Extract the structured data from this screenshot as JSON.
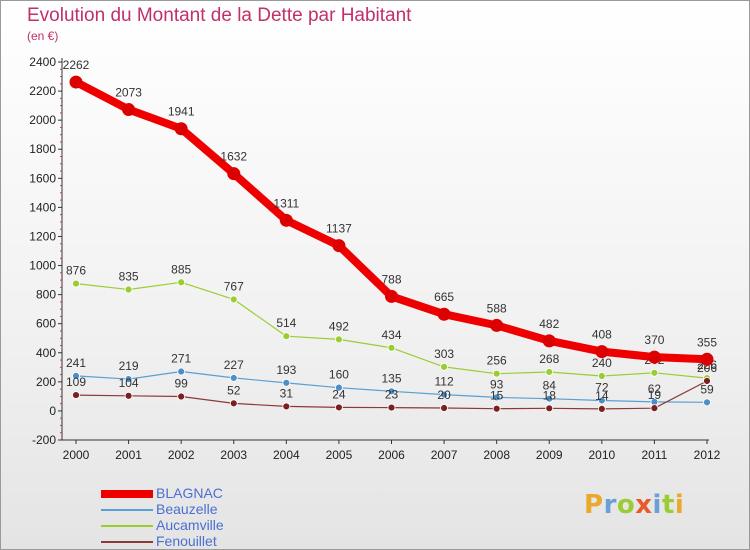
{
  "title": "Evolution du Montant de la Dette par Habitant",
  "subtitle": "(en €)",
  "logo": {
    "text": "Proxiti",
    "colors": [
      "#e8a92c",
      "#6aa0d8",
      "#9acd32",
      "#e85a2a",
      "#6aa0d8",
      "#9acd32",
      "#e8a92c"
    ]
  },
  "chart_data": {
    "type": "line",
    "x": [
      "2000",
      "2001",
      "2002",
      "2003",
      "2004",
      "2005",
      "2006",
      "2007",
      "2008",
      "2009",
      "2010",
      "2011",
      "2012"
    ],
    "ylim": [
      -200,
      2400
    ],
    "yticks": [
      -200,
      0,
      200,
      400,
      600,
      800,
      1000,
      1200,
      1400,
      1600,
      1800,
      2000,
      2200,
      2400
    ],
    "legend_position": "bottom-left",
    "grid": false,
    "series": [
      {
        "name": "Aucamville",
        "color": "#9acd32",
        "point_color": "#9acd32",
        "width": 1.2,
        "marker": 3.5,
        "values": [
          876,
          835,
          885,
          767,
          514,
          492,
          434,
          303,
          256,
          268,
          240,
          262,
          226
        ],
        "labels": [
          "876",
          "835",
          "885",
          "767",
          "514",
          "492",
          "434",
          "303",
          "256",
          "268",
          "240",
          "262",
          "226"
        ]
      },
      {
        "name": "Beauzelle",
        "color": "#5a9fd4",
        "point_color": "#4a8fc8",
        "width": 1.2,
        "marker": 3.5,
        "values": [
          241,
          219,
          271,
          227,
          193,
          160,
          135,
          112,
          93,
          84,
          72,
          62,
          59
        ],
        "labels": [
          "241",
          "219",
          "271",
          "227",
          "193",
          "160",
          "135",
          "112",
          "93",
          "84",
          "72",
          "62",
          "59"
        ]
      },
      {
        "name": "Fenouillet",
        "color": "#8b3a3a",
        "point_color": "#7a2020",
        "width": 1.2,
        "marker": 3.5,
        "values": [
          109,
          104,
          99,
          52,
          31,
          24,
          23,
          20,
          15,
          18,
          14,
          19,
          206
        ],
        "labels": [
          "109",
          "104",
          "99",
          "52",
          "31",
          "24",
          "23",
          "20",
          "15",
          "18",
          "14",
          "19",
          "206"
        ]
      },
      {
        "name": "BLAGNAC",
        "color": "#ee0000",
        "point_color": "#dd0000",
        "width": 8,
        "marker": 6.5,
        "values": [
          2262,
          2073,
          1941,
          1632,
          1311,
          1137,
          788,
          665,
          588,
          482,
          408,
          370,
          355
        ],
        "labels": [
          "2262",
          "2073",
          "1941",
          "1632",
          "1311",
          "1137",
          "788",
          "665",
          "588",
          "482",
          "408",
          "370",
          "355"
        ]
      }
    ],
    "legend_order": [
      "BLAGNAC",
      "Beauzelle",
      "Aucamville",
      "Fenouillet"
    ]
  }
}
